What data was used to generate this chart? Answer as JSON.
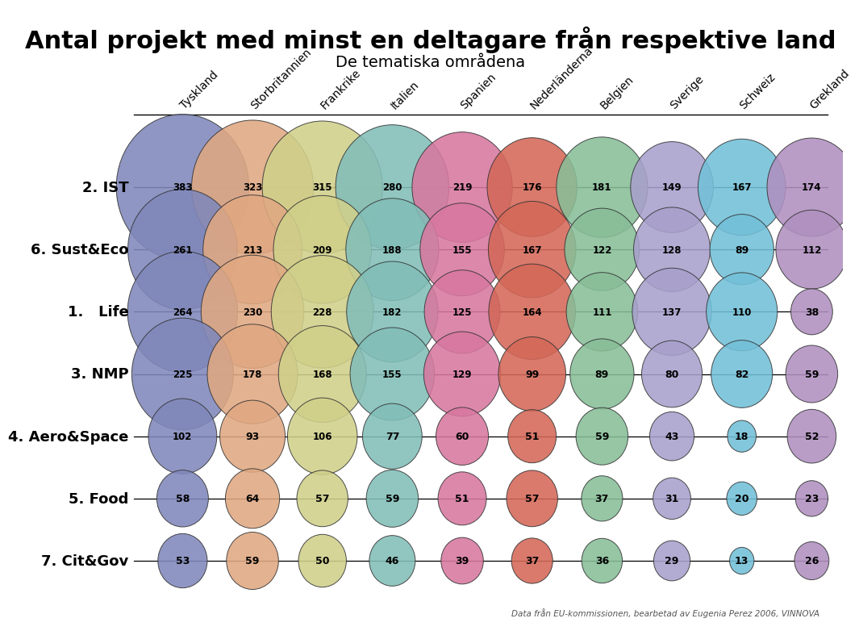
{
  "title": "Antal projekt med minst en deltagare från respektive land",
  "subtitle": "De tematiska områdena",
  "footnote": "Data från EU-kommissionen, bearbetad av Eugenia Perez 2006, VINNOVA",
  "columns": [
    "Tyskland",
    "Storbritannien",
    "Frankrike",
    "Italien",
    "Spanien",
    "Nederländerna",
    "Belgien",
    "Sverige",
    "Schweiz",
    "Grekland"
  ],
  "rows": [
    "2. IST",
    "6. Sust&Eco",
    "1.   Life",
    "3. NMP",
    "4. Aero&Space",
    "5. Food",
    "7. Cit&Gov"
  ],
  "values": [
    [
      383,
      323,
      315,
      280,
      219,
      176,
      181,
      149,
      167,
      174
    ],
    [
      261,
      213,
      209,
      188,
      155,
      167,
      122,
      128,
      89,
      112
    ],
    [
      264,
      230,
      228,
      182,
      125,
      164,
      111,
      137,
      110,
      38
    ],
    [
      225,
      178,
      168,
      155,
      129,
      99,
      89,
      80,
      82,
      59
    ],
    [
      102,
      93,
      106,
      77,
      60,
      51,
      59,
      43,
      18,
      52
    ],
    [
      58,
      64,
      57,
      59,
      51,
      57,
      37,
      31,
      20,
      23
    ],
    [
      53,
      59,
      50,
      46,
      39,
      37,
      36,
      29,
      13,
      26
    ]
  ],
  "col_colors": [
    "#8088bb",
    "#e0a882",
    "#d0d08a",
    "#82beb8",
    "#d878a0",
    "#d46858",
    "#88be98",
    "#a8a0cc",
    "#72c0d8",
    "#b090c0"
  ],
  "col_colors_dark": [
    "#5060a0",
    "#c08050",
    "#a0a040",
    "#4090a0",
    "#a04080",
    "#b04030",
    "#409060",
    "#705090",
    "#2090b0",
    "#804090"
  ],
  "background_color": "#ffffff",
  "title_fontsize": 22,
  "subtitle_fontsize": 14,
  "row_label_fontsize": 13,
  "col_label_fontsize": 10,
  "max_value": 383,
  "scale_factor": 0.042
}
